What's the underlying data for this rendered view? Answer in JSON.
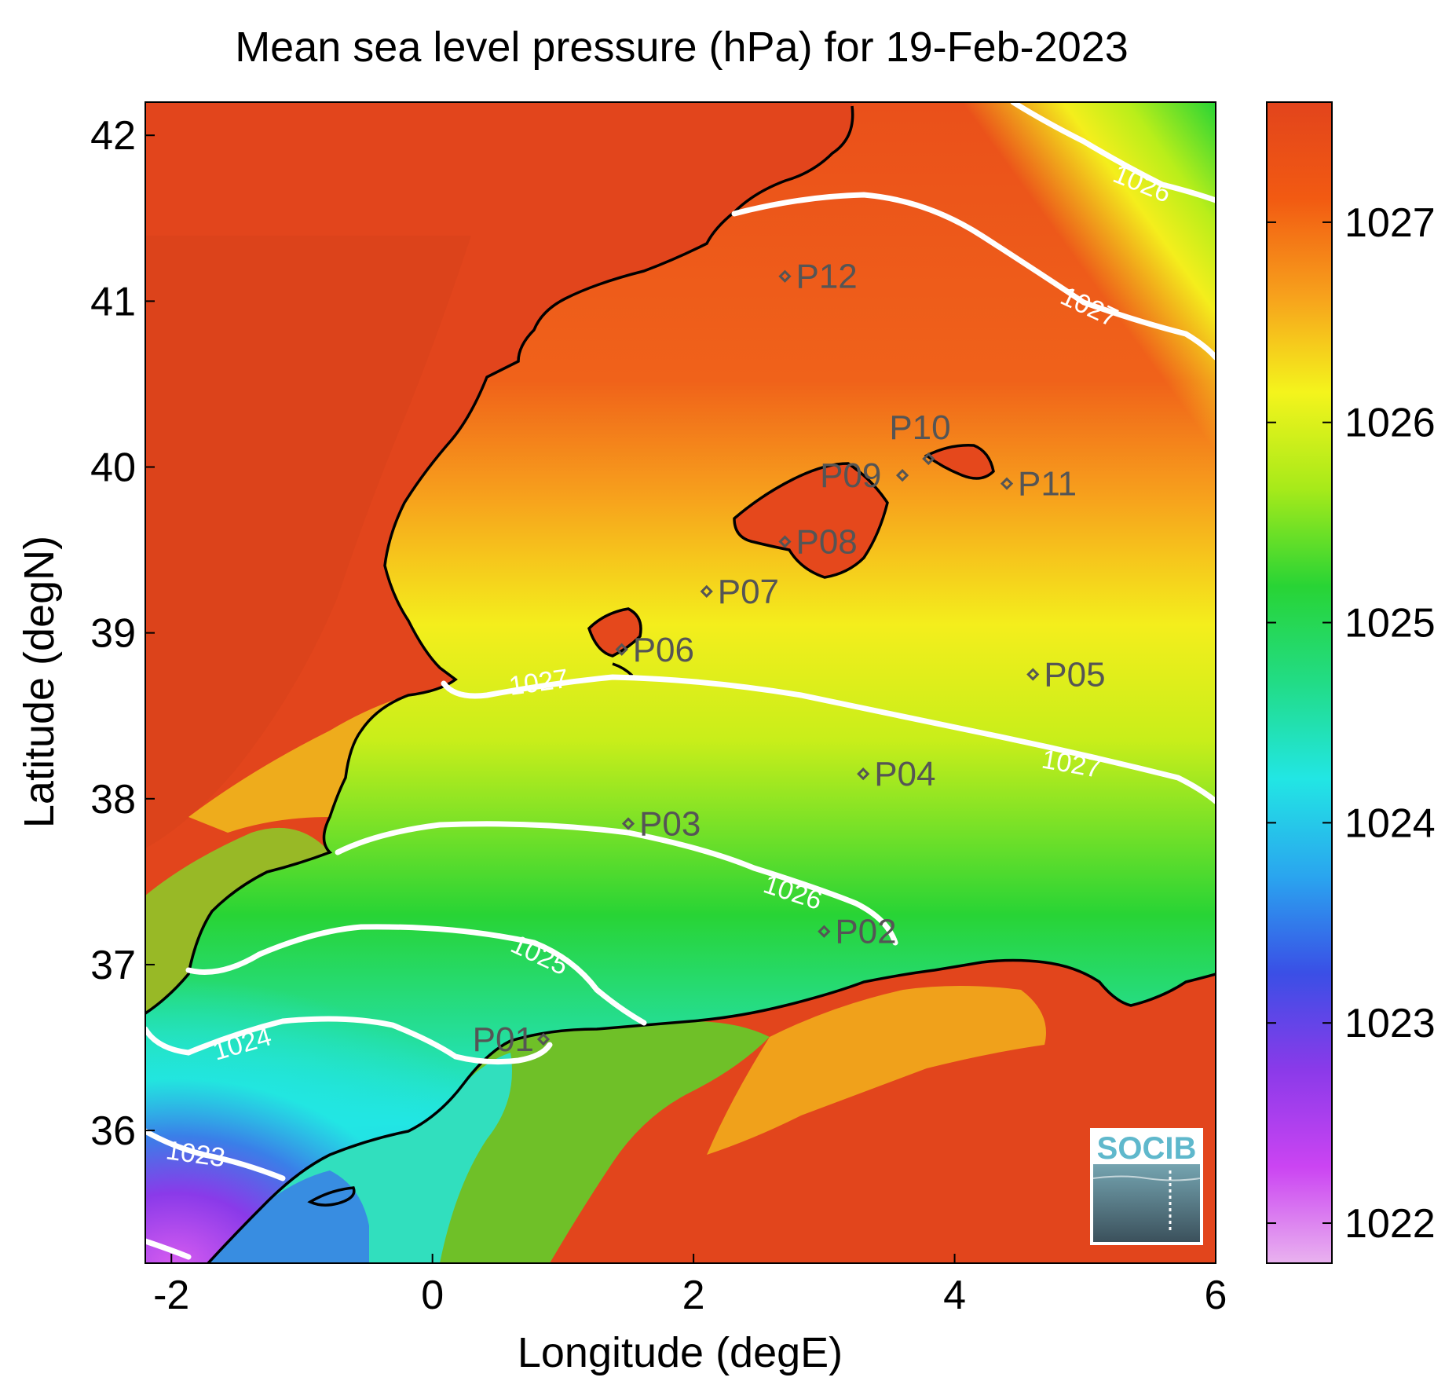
{
  "title": "Mean sea level pressure (hPa) for 19-Feb-2023",
  "xlabel": "Longitude (degE)",
  "ylabel": "Latitude (degN)",
  "x_ticks": [
    "-2",
    "0",
    "2",
    "4",
    "6"
  ],
  "y_ticks": [
    "36",
    "37",
    "38",
    "39",
    "40",
    "41",
    "42"
  ],
  "colorbar": {
    "ticks": [
      "1022",
      "1023",
      "1024",
      "1025",
      "1026",
      "1027"
    ],
    "range": [
      1021.8,
      1027.6
    ],
    "stops": [
      "#e9b2ef",
      "#cb44f2",
      "#8a3ae9",
      "#3a4fe6",
      "#2aa5ef",
      "#22e6e4",
      "#22dc86",
      "#28d435",
      "#a7ea1a",
      "#f4f41c",
      "#f7a11c",
      "#f25a12",
      "#e2441c"
    ]
  },
  "contours": [
    {
      "label": "1023"
    },
    {
      "label": "1024"
    },
    {
      "label": "1025"
    },
    {
      "label": "1026"
    },
    {
      "label": "1026"
    },
    {
      "label": "1027"
    },
    {
      "label": "1027"
    },
    {
      "label": "1027"
    }
  ],
  "stations": [
    {
      "name": "P01",
      "lon": 0.85,
      "lat": 36.55
    },
    {
      "name": "P02",
      "lon": 3.0,
      "lat": 37.2
    },
    {
      "name": "P03",
      "lon": 1.5,
      "lat": 37.85
    },
    {
      "name": "P04",
      "lon": 3.3,
      "lat": 38.15
    },
    {
      "name": "P05",
      "lon": 4.6,
      "lat": 38.75
    },
    {
      "name": "P06",
      "lon": 1.45,
      "lat": 38.9
    },
    {
      "name": "P07",
      "lon": 2.1,
      "lat": 39.25
    },
    {
      "name": "P08",
      "lon": 2.7,
      "lat": 39.55
    },
    {
      "name": "P09",
      "lon": 3.6,
      "lat": 39.95
    },
    {
      "name": "P10",
      "lon": 3.8,
      "lat": 40.05
    },
    {
      "name": "P11",
      "lon": 4.4,
      "lat": 39.9
    },
    {
      "name": "P12",
      "lon": 2.7,
      "lat": 41.15
    }
  ],
  "logo": "SOCIB"
}
